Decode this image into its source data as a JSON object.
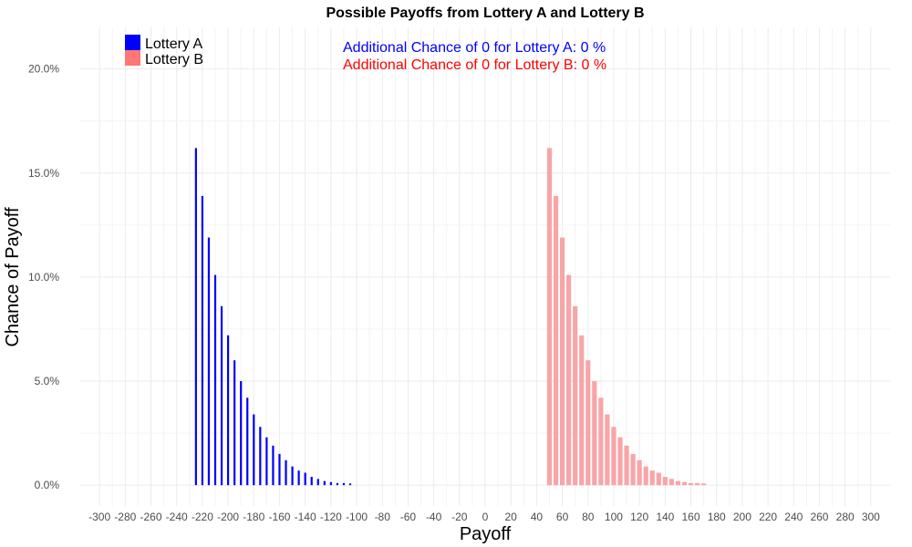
{
  "colors": {
    "lottery_a": "#0000ff",
    "lottery_b": "#f8a5a8",
    "legend_b": "#ff7777",
    "annot_a": "#0000ff",
    "annot_b": "#ff0000",
    "grid": "#ebebeb"
  },
  "chart_data": {
    "type": "bar",
    "title": "Possible Payoffs from Lottery A and Lottery B",
    "xlabel": "Payoff",
    "ylabel": "Chance of Payoff",
    "xlim": [
      -315,
      315
    ],
    "ylim": [
      -0.01,
      0.22
    ],
    "x_ticks": [
      -300,
      -280,
      -260,
      -240,
      -220,
      -200,
      -180,
      -160,
      -140,
      -120,
      -100,
      -80,
      -60,
      -40,
      -20,
      0,
      20,
      40,
      60,
      80,
      100,
      120,
      140,
      160,
      180,
      200,
      220,
      240,
      260,
      280,
      300
    ],
    "x_tick_labels": [
      "-300",
      "-280",
      "-260",
      "-240",
      "-220",
      "-200",
      "-180",
      "-160",
      "-140",
      "-120",
      "-100",
      "-80",
      "-60",
      "-40",
      "-20",
      "0",
      "20",
      "40",
      "60",
      "80",
      "100",
      "120",
      "140",
      "160",
      "180",
      "200",
      "220",
      "240",
      "260",
      "280",
      "300"
    ],
    "y_ticks": [
      0,
      0.05,
      0.1,
      0.15,
      0.2
    ],
    "y_tick_labels": [
      "0.0%",
      "5.0%",
      "10.0%",
      "15.0%",
      "20.0%"
    ],
    "grid": true,
    "legend_position": "top-left",
    "legend": [
      {
        "label": "Lottery A"
      },
      {
        "label": "Lottery B"
      }
    ],
    "annotations": [
      "Additional Chance of 0 for Lottery A:  0 %",
      "Additional Chance of 0 for Lottery B:  0 %"
    ],
    "series": [
      {
        "name": "Lottery A",
        "x": [
          -225,
          -220,
          -215,
          -210,
          -205,
          -200,
          -195,
          -190,
          -185,
          -180,
          -175,
          -170,
          -165,
          -160,
          -155,
          -150,
          -145,
          -140,
          -135,
          -130,
          -125,
          -120,
          -115,
          -110,
          -105
        ],
        "values": [
          0.162,
          0.139,
          0.119,
          0.101,
          0.086,
          0.072,
          0.06,
          0.05,
          0.042,
          0.034,
          0.028,
          0.023,
          0.019,
          0.015,
          0.012,
          0.009,
          0.007,
          0.006,
          0.004,
          0.003,
          0.002,
          0.0015,
          0.001,
          0.001,
          0.0008
        ]
      },
      {
        "name": "Lottery B",
        "x": [
          50,
          55,
          60,
          65,
          70,
          75,
          80,
          85,
          90,
          95,
          100,
          105,
          110,
          115,
          120,
          125,
          130,
          135,
          140,
          145,
          150,
          155,
          160,
          165,
          170
        ],
        "values": [
          0.162,
          0.139,
          0.119,
          0.101,
          0.086,
          0.072,
          0.06,
          0.05,
          0.042,
          0.034,
          0.028,
          0.023,
          0.019,
          0.015,
          0.012,
          0.009,
          0.007,
          0.006,
          0.004,
          0.003,
          0.002,
          0.0015,
          0.001,
          0.001,
          0.0008
        ]
      }
    ]
  }
}
